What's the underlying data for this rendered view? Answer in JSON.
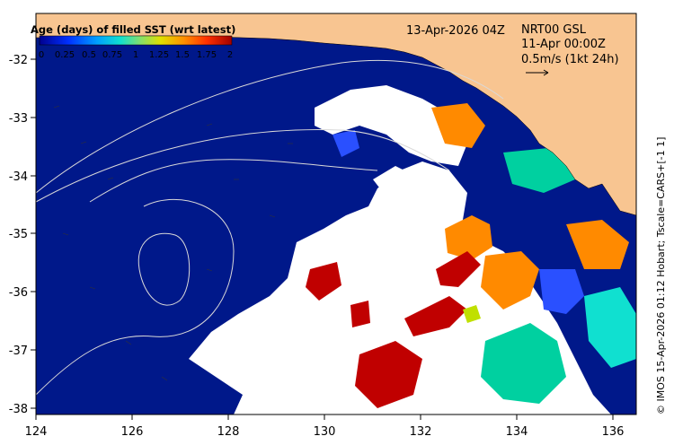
{
  "map": {
    "date_label": "13-Apr-2026 04Z",
    "product_label": "NRT00 GSL",
    "time_label": "11-Apr 00:00Z",
    "vector_scale_label": "0.5m/s (1kt 24h)",
    "credit": "© IMOS 15-Apr-2026 01:12 Hobart; Tscale=CARS+[-1 1]",
    "lon_ticks": [
      "124",
      "126",
      "128",
      "130",
      "132",
      "134",
      "136"
    ],
    "lat_ticks": [
      "-32",
      "-33",
      "-34",
      "-35",
      "-36",
      "-37",
      "-38"
    ],
    "lon_range": [
      124,
      136.5
    ],
    "lat_range": [
      -38.1,
      -31.7
    ],
    "colors": {
      "land": "#f8c591",
      "ocean_fresh": "#00188a",
      "no_data": "#ffffff",
      "contour": "#d9d9d9"
    }
  },
  "colorbar": {
    "title": "Age (days) of filled SST (wrt latest)",
    "tick_labels": [
      "0",
      "0.25",
      "0.5",
      "0.75",
      "1",
      "1.25",
      "1.5",
      "1.75",
      "2"
    ],
    "colors": [
      "#00008f",
      "#0040ff",
      "#00a0ff",
      "#10e0d0",
      "#7fe070",
      "#e0e000",
      "#ff9000",
      "#ff3000",
      "#a00000"
    ]
  }
}
